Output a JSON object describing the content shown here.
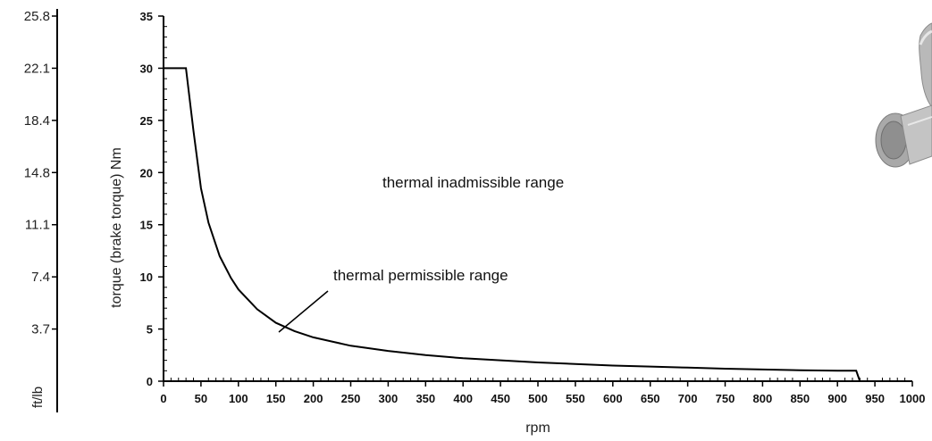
{
  "chart_data": {
    "type": "line",
    "title": "",
    "xlabel": "rpm",
    "ylabel": "torque (brake torque) Nm",
    "xlim": [
      0,
      1000
    ],
    "ylim": [
      0,
      35
    ],
    "x_ticks": [
      0,
      50,
      100,
      150,
      200,
      250,
      300,
      350,
      400,
      450,
      500,
      550,
      600,
      650,
      700,
      750,
      800,
      850,
      900,
      950,
      1000
    ],
    "y_ticks": [
      0,
      5,
      10,
      15,
      20,
      25,
      30,
      35
    ],
    "secondary_axis": {
      "label": "ft/lb",
      "ticks": [
        "3.7",
        "7.4",
        "11.1",
        "14.8",
        "18.4",
        "22.1",
        "25.8"
      ]
    },
    "series": [
      {
        "x": [
          0,
          30,
          40,
          50,
          60,
          75,
          90,
          100,
          125,
          150,
          175,
          200,
          250,
          300,
          350,
          400,
          450,
          500,
          550,
          600,
          650,
          700,
          750,
          800,
          850,
          900,
          925,
          930
        ],
        "values": [
          30,
          30,
          24,
          18.5,
          15.2,
          12,
          9.9,
          8.8,
          6.9,
          5.6,
          4.8,
          4.2,
          3.4,
          2.9,
          2.5,
          2.2,
          2.0,
          1.8,
          1.65,
          1.5,
          1.4,
          1.3,
          1.2,
          1.12,
          1.05,
          1.0,
          1.0,
          0
        ]
      }
    ],
    "annotations": [
      "thermal inadmissible range",
      "thermal permissible range"
    ]
  }
}
